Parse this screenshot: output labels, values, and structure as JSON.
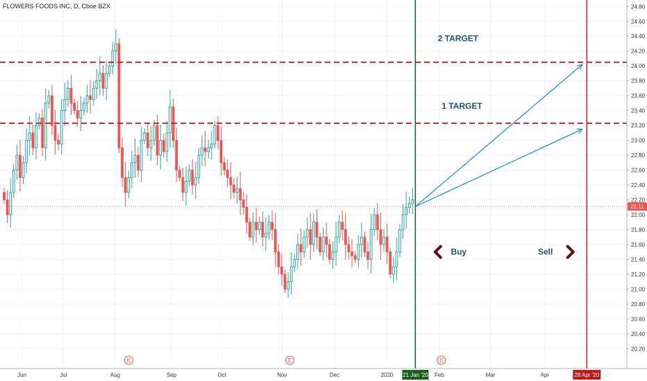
{
  "chart_data": {
    "type": "candlestick",
    "title": "FLOWERS FOODS INC, D, Cboe BZX",
    "y_range": [
      20.1,
      24.84
    ],
    "y_ticks": [
      "24.80",
      "24.60",
      "24.40",
      "24.20",
      "24.00",
      "23.80",
      "23.60",
      "23.40",
      "23.20",
      "23.00",
      "22.80",
      "22.60",
      "22.40",
      "22.20",
      "22.00",
      "21.80",
      "21.60",
      "21.40",
      "21.20",
      "21.00",
      "20.80",
      "20.60",
      "20.40",
      "20.20"
    ],
    "x_ticks": [
      {
        "label": "Jun",
        "t": 0.034
      },
      {
        "label": "Jul",
        "t": 0.098
      },
      {
        "label": "Aug",
        "t": 0.178
      },
      {
        "label": "Sep",
        "t": 0.265
      },
      {
        "label": "Oct",
        "t": 0.343
      },
      {
        "label": "Nov",
        "t": 0.436
      },
      {
        "label": "Dec",
        "t": 0.517
      },
      {
        "label": "2020",
        "t": 0.598
      },
      {
        "label": "Feb",
        "t": 0.679
      },
      {
        "label": "Mar",
        "t": 0.758
      },
      {
        "label": "Apr",
        "t": 0.842
      }
    ],
    "closes": [
      22.2,
      22.0,
      22.3,
      22.6,
      22.8,
      22.5,
      22.7,
      23.0,
      23.1,
      22.9,
      23.2,
      23.3,
      22.9,
      23.5,
      23.6,
      23.2,
      23.0,
      22.95,
      23.4,
      23.55,
      23.7,
      23.5,
      23.4,
      23.3,
      23.4,
      23.5,
      23.6,
      23.55,
      23.7,
      23.8,
      23.9,
      23.7,
      23.9,
      24.0,
      24.2,
      24.3,
      22.9,
      22.5,
      22.3,
      22.5,
      22.7,
      22.8,
      22.6,
      23.0,
      23.1,
      22.9,
      23.0,
      23.2,
      22.8,
      23.0,
      22.85,
      23.1,
      23.45,
      23.0,
      22.6,
      22.5,
      22.3,
      22.45,
      22.6,
      22.4,
      22.5,
      22.8,
      22.9,
      22.85,
      22.9,
      22.95,
      23.2,
      23.0,
      22.7,
      22.6,
      22.5,
      22.4,
      22.3,
      22.35,
      22.2,
      22.1,
      21.9,
      21.7,
      21.9,
      21.8,
      21.9,
      21.7,
      21.75,
      21.9,
      21.8,
      21.5,
      21.3,
      21.2,
      21.0,
      21.1,
      21.3,
      21.4,
      21.6,
      21.5,
      21.7,
      21.8,
      21.6,
      21.9,
      21.7,
      21.5,
      21.7,
      21.6,
      21.4,
      21.5,
      21.7,
      21.9,
      21.8,
      21.6,
      21.5,
      21.45,
      21.4,
      21.6,
      21.7,
      21.5,
      21.4,
      21.8,
      22.0,
      21.8,
      21.6,
      21.7,
      21.5,
      21.2,
      21.3,
      21.5,
      21.8,
      22.0,
      22.1,
      22.15,
      22.2
    ],
    "last_price": "22.11",
    "last_price_value": 22.11,
    "horizontal_lines": [
      {
        "value": 24.05
      },
      {
        "value": 23.23
      }
    ],
    "vertical_lines": [
      {
        "label": "21 Jan '20",
        "t": 0.642
      },
      {
        "label": "28 Apr '20",
        "t": 0.907
      }
    ],
    "earnings_markers": [
      {
        "label": "E",
        "t": 0.199
      },
      {
        "label": "E",
        "t": 0.448
      },
      {
        "label": "E",
        "t": 0.682
      }
    ],
    "annotations": [
      {
        "text": "2 TARGET",
        "t": 0.708,
        "value": 24.37
      },
      {
        "text": "1 TARGET",
        "t": 0.714,
        "value": 23.46
      },
      {
        "text": "Buy",
        "t": 0.709,
        "value": 21.5
      },
      {
        "text": "Sell",
        "t": 0.843,
        "value": 21.5
      }
    ],
    "arrows": [
      {
        "from_t": 0.642,
        "from": 22.11,
        "to_t": 0.9,
        "to": 24.02
      },
      {
        "from_t": 0.642,
        "from": 22.11,
        "to_t": 0.9,
        "to": 23.15
      }
    ],
    "colors": {
      "up": "#26a69a",
      "down": "#ef5350",
      "target_line": "#c62828",
      "buy_line": "#1b5e20",
      "sell_line": "#b71c1c",
      "arrow": "#2196c4",
      "dark_arrow": "#5d0f0f",
      "label_text": "#1c5573"
    }
  }
}
